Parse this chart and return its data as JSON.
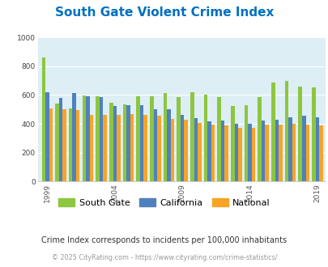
{
  "title": "South Gate Violent Crime Index",
  "subtitle": "Crime Index corresponds to incidents per 100,000 inhabitants",
  "footer": "© 2025 CityRating.com - https://www.cityrating.com/crime-statistics/",
  "years": [
    1999,
    2000,
    2001,
    2002,
    2003,
    2004,
    2005,
    2006,
    2007,
    2008,
    2009,
    2010,
    2011,
    2012,
    2013,
    2014,
    2015,
    2016,
    2017,
    2018,
    2019
  ],
  "south_gate": [
    860,
    540,
    510,
    595,
    590,
    545,
    535,
    590,
    590,
    615,
    585,
    620,
    600,
    585,
    525,
    530,
    585,
    685,
    700,
    660,
    655
  ],
  "california": [
    620,
    580,
    615,
    590,
    585,
    525,
    530,
    530,
    500,
    500,
    465,
    440,
    415,
    425,
    400,
    400,
    425,
    430,
    445,
    455,
    445
  ],
  "national": [
    510,
    500,
    495,
    465,
    465,
    460,
    470,
    465,
    455,
    435,
    430,
    405,
    395,
    390,
    375,
    375,
    395,
    395,
    400,
    395,
    390
  ],
  "tick_years": [
    1999,
    2004,
    2009,
    2014,
    2019
  ],
  "ylim": [
    0,
    1000
  ],
  "yticks": [
    0,
    200,
    400,
    600,
    800,
    1000
  ],
  "south_gate_color": "#8dc63f",
  "california_color": "#4f81bd",
  "national_color": "#f7a427",
  "bg_color": "#ddeef5",
  "title_color": "#0070c0",
  "subtitle_color": "#333333",
  "footer_color": "#999999",
  "legend_labels": [
    "South Gate",
    "California",
    "National"
  ]
}
